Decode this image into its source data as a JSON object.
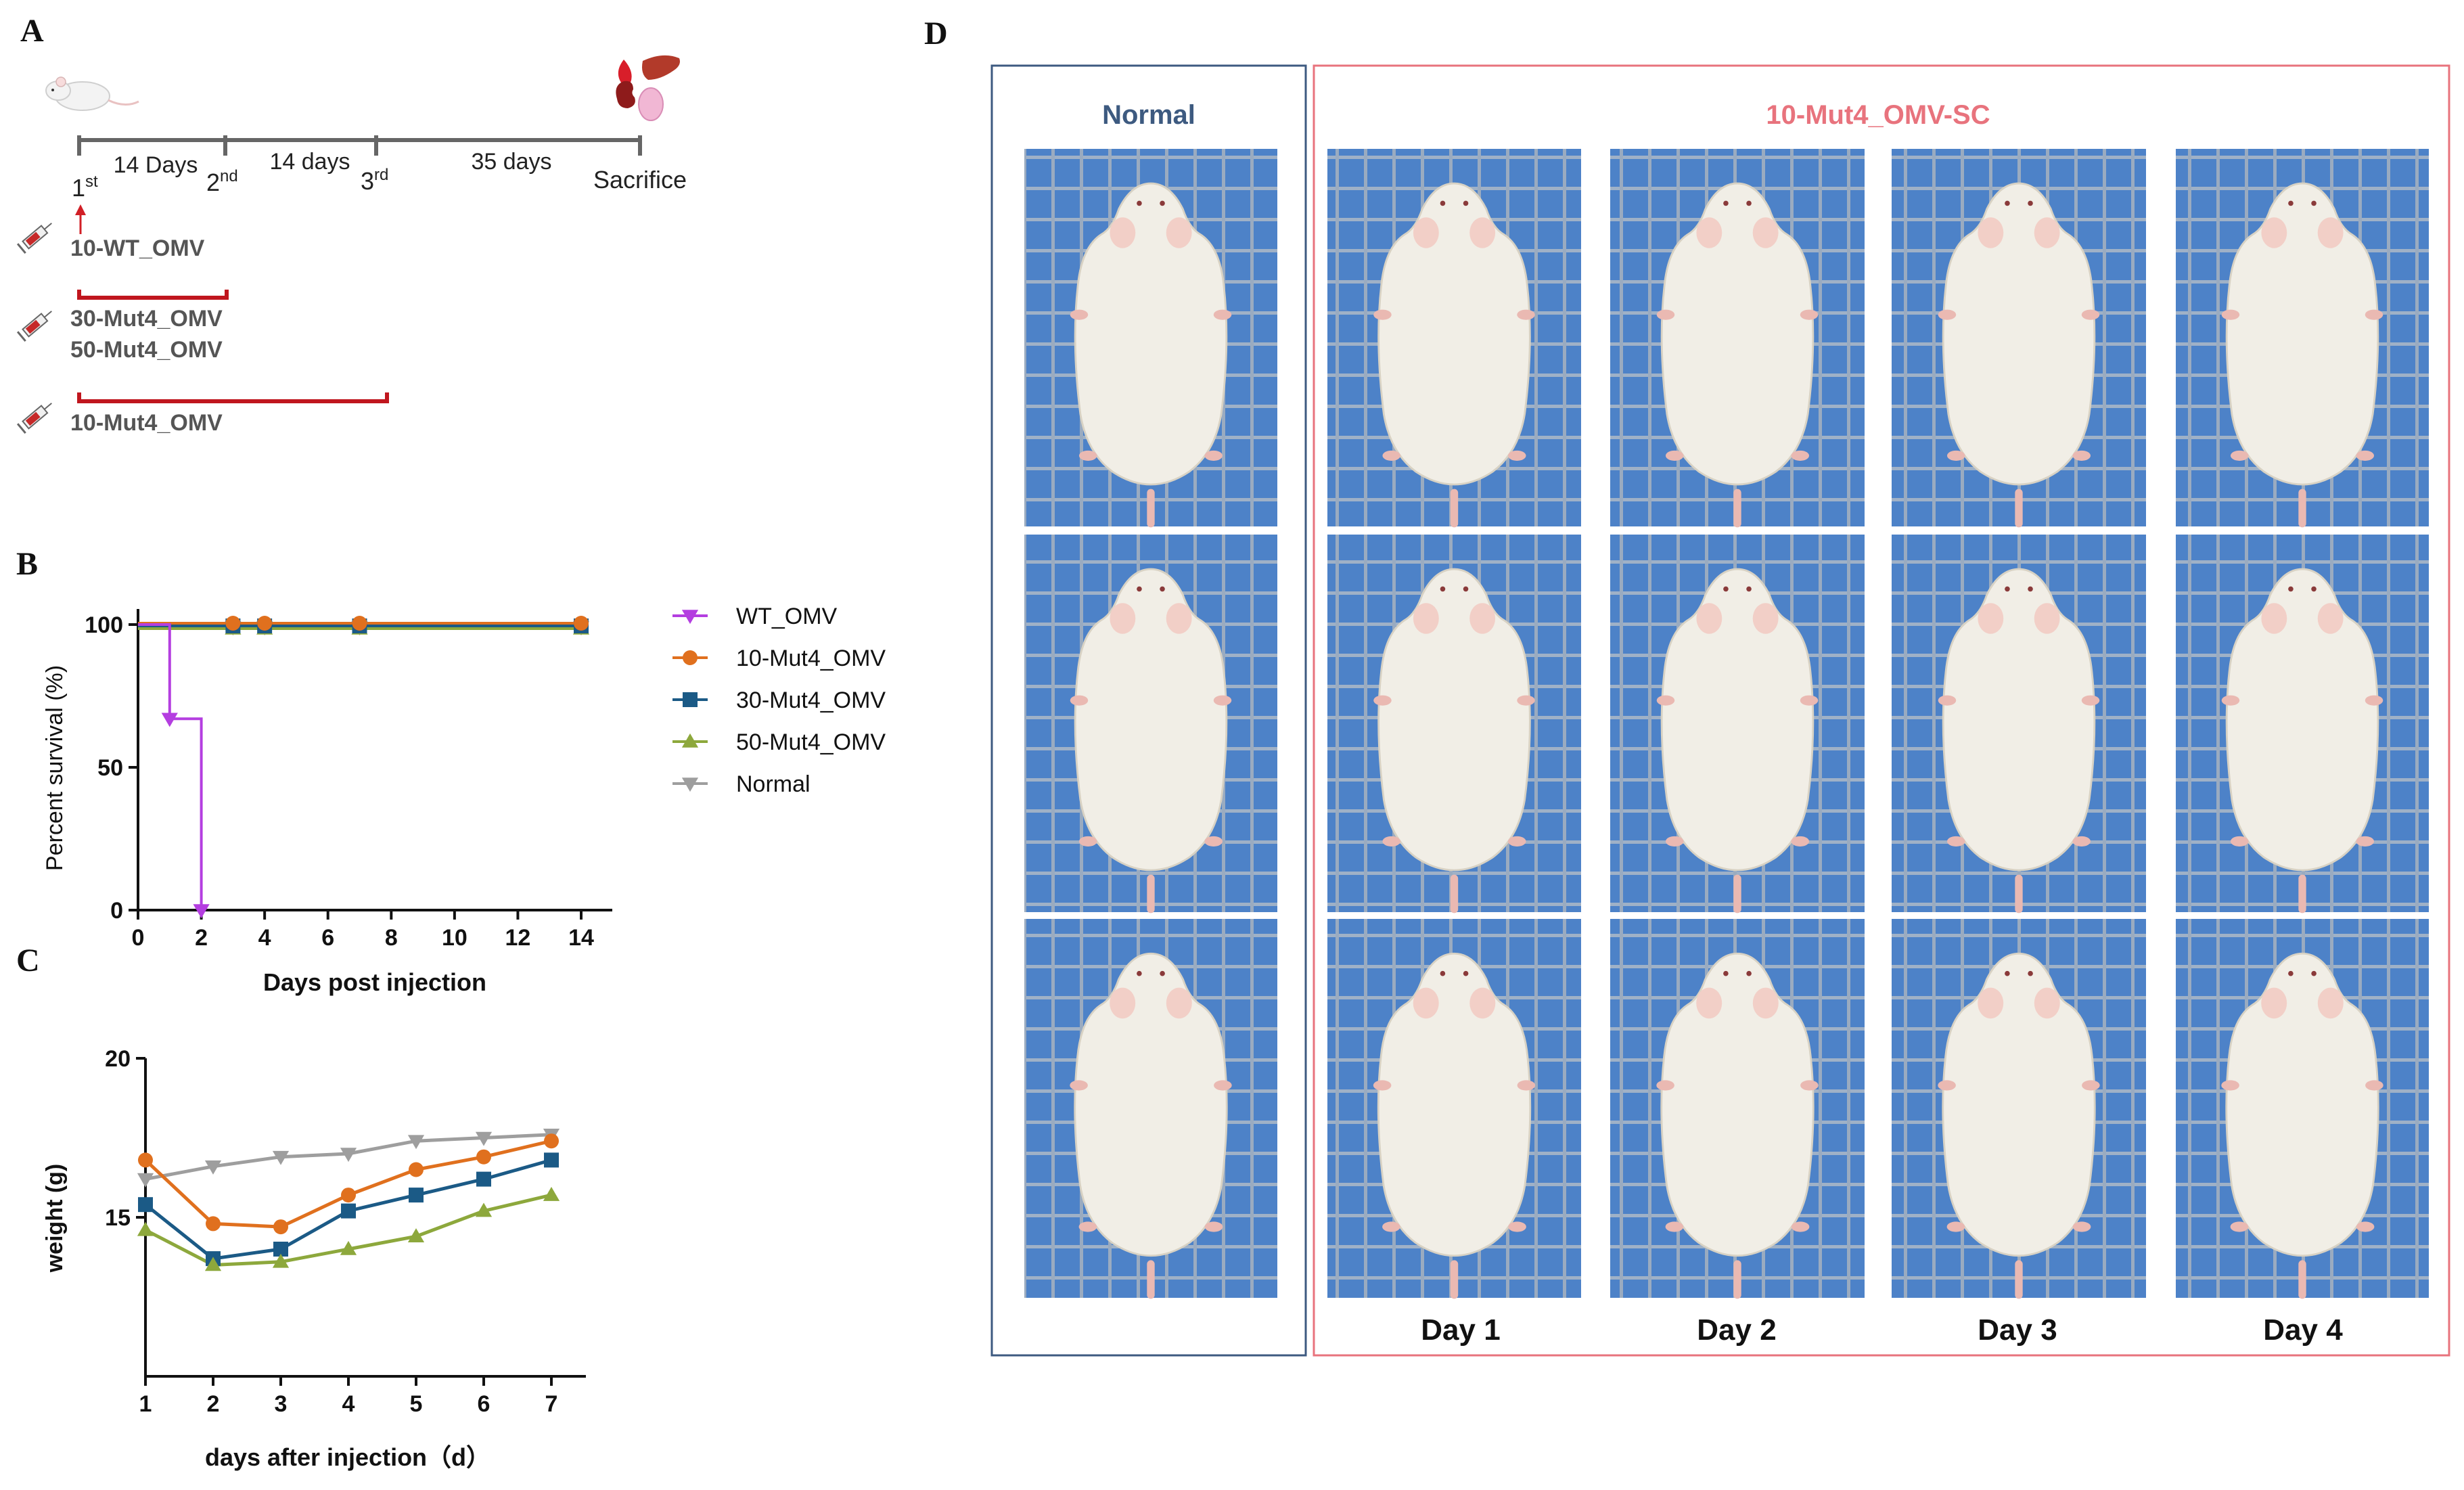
{
  "panels": {
    "a": "A",
    "b": "B",
    "c": "C",
    "d": "D"
  },
  "panel_a": {
    "intervals": [
      "14 Days",
      "14 days",
      "35 days"
    ],
    "injections": [
      {
        "num": "1",
        "sup": "st"
      },
      {
        "num": "2",
        "sup": "nd"
      },
      {
        "num": "3",
        "sup": "rd"
      }
    ],
    "endpoint": "Sacrifice",
    "groups": [
      "10-WT_OMV",
      "30-Mut4_OMV",
      "50-Mut4_OMV",
      "10-Mut4_OMV"
    ],
    "icons": [
      "mouse-icon",
      "syringe-icon",
      "heart-icon",
      "liver-icon",
      "kidney-icon",
      "spleen-icon"
    ]
  },
  "chart_data": [
    {
      "type": "line",
      "panel": "B",
      "xlabel": "Days post injection",
      "ylabel": "Percent survival (%)",
      "xlim": [
        0,
        14
      ],
      "ylim": [
        0,
        100
      ],
      "xticks": [
        0,
        2,
        4,
        6,
        8,
        10,
        12,
        14
      ],
      "yticks": [
        0,
        50,
        100
      ],
      "step": true,
      "legend_position": "right",
      "series": [
        {
          "name": "WT_OMV",
          "color": "#b43ee0",
          "marker": "triangle-down",
          "x": [
            0,
            1,
            2
          ],
          "y": [
            100,
            67,
            0
          ]
        },
        {
          "name": "10-Mut4_OMV",
          "color": "#e0701e",
          "marker": "circle",
          "x": [
            0,
            3,
            4,
            7,
            14
          ],
          "y": [
            100,
            100,
            100,
            100,
            100
          ]
        },
        {
          "name": "30-Mut4_OMV",
          "color": "#1b5a86",
          "marker": "square",
          "x": [
            0,
            3,
            4,
            7,
            14
          ],
          "y": [
            100,
            100,
            100,
            100,
            100
          ]
        },
        {
          "name": "50-Mut4_OMV",
          "color": "#8da83c",
          "marker": "triangle-up",
          "x": [
            0,
            3,
            4,
            7,
            14
          ],
          "y": [
            100,
            100,
            100,
            100,
            100
          ]
        },
        {
          "name": "Normal",
          "color": "#9e9e9e",
          "marker": "triangle-down",
          "x": [
            0,
            3,
            4,
            7,
            14
          ],
          "y": [
            100,
            100,
            100,
            100,
            100
          ]
        }
      ]
    },
    {
      "type": "line",
      "panel": "C",
      "xlabel": "days after injection（d）",
      "ylabel": "weight (g)",
      "xlim": [
        1,
        7
      ],
      "ylim": [
        10,
        20
      ],
      "xticks": [
        1,
        2,
        3,
        4,
        5,
        6,
        7
      ],
      "yticks": [
        15,
        20
      ],
      "x": [
        1,
        2,
        3,
        4,
        5,
        6,
        7
      ],
      "series": [
        {
          "name": "Normal",
          "color": "#9e9e9e",
          "marker": "triangle-down",
          "values": [
            16.2,
            16.6,
            16.9,
            17.0,
            17.4,
            17.5,
            17.6
          ]
        },
        {
          "name": "10-Mut4_OMV",
          "color": "#e0701e",
          "marker": "circle",
          "values": [
            16.8,
            14.8,
            14.7,
            15.7,
            16.5,
            16.9,
            17.4
          ]
        },
        {
          "name": "30-Mut4_OMV",
          "color": "#1b5a86",
          "marker": "square",
          "values": [
            15.4,
            13.7,
            14.0,
            15.2,
            15.7,
            16.2,
            16.8
          ]
        },
        {
          "name": "50-Mut4_OMV",
          "color": "#8da83c",
          "marker": "triangle-up",
          "values": [
            14.6,
            13.5,
            13.6,
            14.0,
            14.4,
            15.2,
            15.7
          ]
        }
      ]
    }
  ],
  "panel_d": {
    "normal_title": "Normal",
    "treated_title": "10-Mut4_OMV-SC",
    "days": [
      "Day 1",
      "Day 2",
      "Day 3",
      "Day 4"
    ],
    "normal_color": "#3d5a80",
    "treated_color": "#e8737d",
    "photo_background": "#4d82c8"
  }
}
